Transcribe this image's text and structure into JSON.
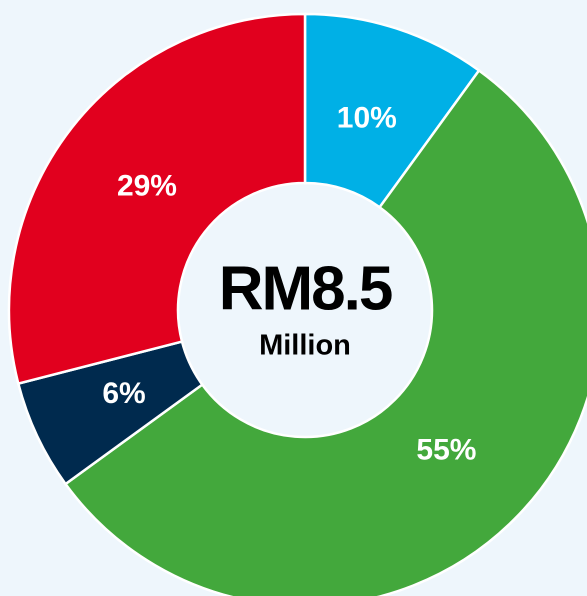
{
  "chart_data": {
    "type": "donut",
    "center_label": "RM8.5",
    "center_sublabel": "Million",
    "values": [
      10,
      55,
      6,
      29
    ],
    "value_labels": [
      "10%",
      "55%",
      "6%",
      "29%"
    ],
    "colors": [
      "#00b0e6",
      "#43a83c",
      "#002a4e",
      "#e1001e"
    ]
  }
}
